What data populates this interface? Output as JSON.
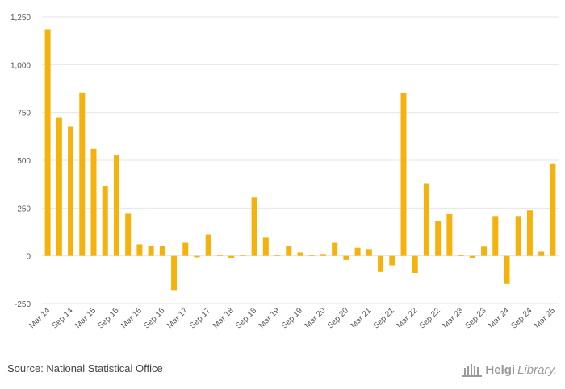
{
  "chart_data": {
    "type": "bar",
    "title": "",
    "xlabel": "",
    "ylabel": "",
    "ylim": [
      -250,
      1250
    ],
    "yticks": [
      -250,
      0,
      250,
      500,
      750,
      1000,
      1250
    ],
    "ytick_labels": [
      "-250",
      "0",
      "250",
      "500",
      "750",
      "1,000",
      "1,250"
    ],
    "grid": true,
    "categories": [
      "Mar 14",
      "Jun 14",
      "Sep 14",
      "Dec 14",
      "Mar 15",
      "Jun 15",
      "Sep 15",
      "Dec 15",
      "Mar 16",
      "Jun 16",
      "Sep 16",
      "Dec 16",
      "Mar 17",
      "Jun 17",
      "Sep 17",
      "Dec 17",
      "Mar 18",
      "Jun 18",
      "Sep 18",
      "Dec 18",
      "Mar 19",
      "Jun 19",
      "Sep 19",
      "Dec 19",
      "Mar 20",
      "Jun 20",
      "Sep 20",
      "Dec 20",
      "Mar 21",
      "Jun 21",
      "Sep 21",
      "Dec 21",
      "Mar 22",
      "Jun 22",
      "Sep 22",
      "Dec 22",
      "Mar 23",
      "Jun 23",
      "Sep 23",
      "Dec 23",
      "Mar 24",
      "Jun 24",
      "Sep 24",
      "Dec 24",
      "Mar 25"
    ],
    "x_tick_labels": [
      "Mar 14",
      "Sep 14",
      "Mar 15",
      "Sep 15",
      "Mar 16",
      "Sep 16",
      "Mar 17",
      "Sep 17",
      "Mar 18",
      "Sep 18",
      "Mar 19",
      "Sep 19",
      "Mar 20",
      "Sep 20",
      "Mar 21",
      "Sep 21",
      "Mar 22",
      "Sep 22",
      "Mar 23",
      "Sep 23",
      "Mar 24",
      "Sep 24",
      "Mar 25"
    ],
    "values": [
      1185,
      725,
      675,
      855,
      560,
      365,
      525,
      220,
      60,
      52,
      52,
      -180,
      68,
      -8,
      110,
      5,
      -10,
      5,
      305,
      98,
      5,
      52,
      18,
      5,
      10,
      68,
      -22,
      42,
      35,
      -85,
      -50,
      850,
      -90,
      380,
      182,
      218,
      2,
      -10,
      48,
      208,
      -148,
      208,
      238,
      22,
      480
    ],
    "colors": {
      "bar": "#f5b20c"
    }
  },
  "footer": {
    "source": "Source: National Statistical Office",
    "logo_main": "Helgi",
    "logo_secondary": "Library."
  }
}
